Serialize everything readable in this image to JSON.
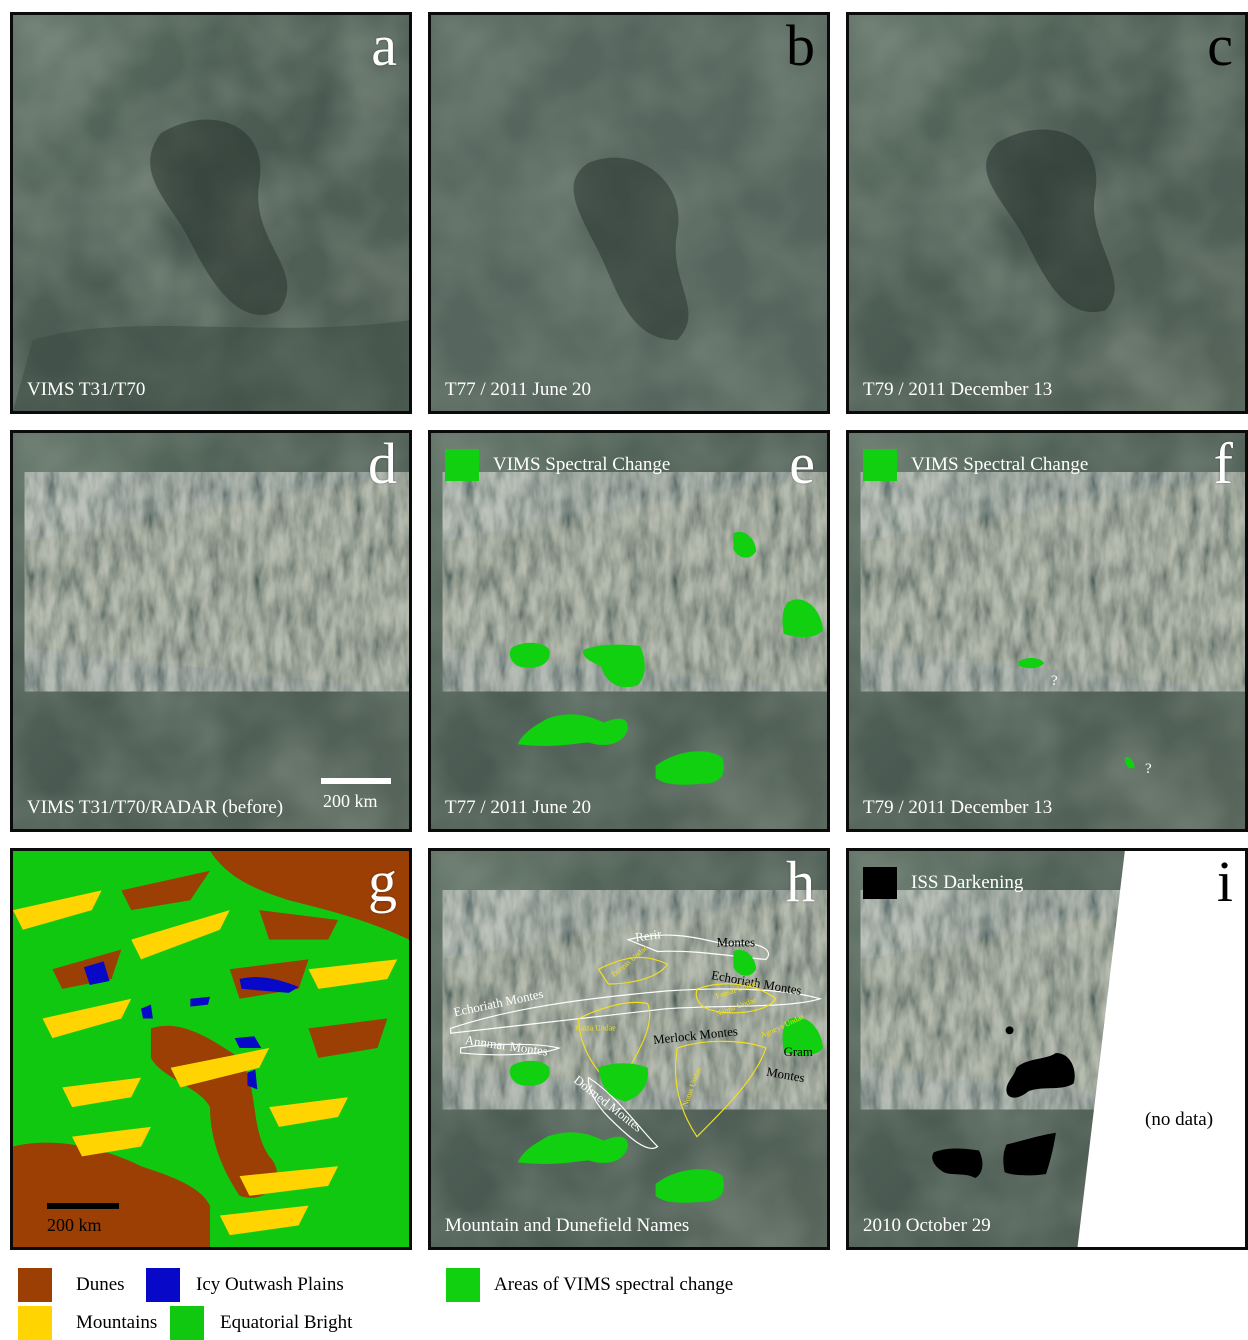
{
  "panels": {
    "a": {
      "letter": "a",
      "caption": "VIMS T31/T70"
    },
    "b": {
      "letter": "b",
      "caption": "T77 / 2011 June 20"
    },
    "c": {
      "letter": "c",
      "caption": "T79 / 2011 December 13"
    },
    "d": {
      "letter": "d",
      "caption": "VIMS T31/T70/RADAR (before)",
      "scale": "200 km"
    },
    "e": {
      "letter": "e",
      "caption": "T77 / 2011 June 20",
      "tag": "VIMS Spectral Change"
    },
    "f": {
      "letter": "f",
      "caption": "T79 / 2011 December 13",
      "tag": "VIMS Spectral Change",
      "q1": "?",
      "q2": "?"
    },
    "g": {
      "letter": "g",
      "scale": "200 km"
    },
    "h": {
      "letter": "h",
      "caption": "Mountain and Dunefield Names",
      "names": [
        "Rerir",
        "Montes",
        "Echoriath Montes",
        "Echoriath Montes",
        "Annmar Montes",
        "Merlock Montes",
        "Gram",
        "Montes",
        "Dolmed Montes",
        "Kaiza Undae",
        "Boreas Undae",
        "Fensal Undae",
        "Notus Undae",
        "Agneya Undae",
        "Nanna Undae"
      ]
    },
    "i": {
      "letter": "i",
      "caption": "2010 October 29",
      "tag": "ISS Darkening",
      "nodata": "(no data)"
    }
  },
  "legend": {
    "dunes": "Dunes",
    "icy": "Icy Outwash Plains",
    "mountains": "Mountains",
    "bright": "Equatorial Bright",
    "change": "Areas of VIMS spectral change"
  },
  "colors": {
    "dunes": "#9b3f05",
    "icy": "#0808c8",
    "mountains": "#ffd400",
    "bright": "#11c811",
    "change": "#10d010",
    "darkening": "#000000"
  }
}
